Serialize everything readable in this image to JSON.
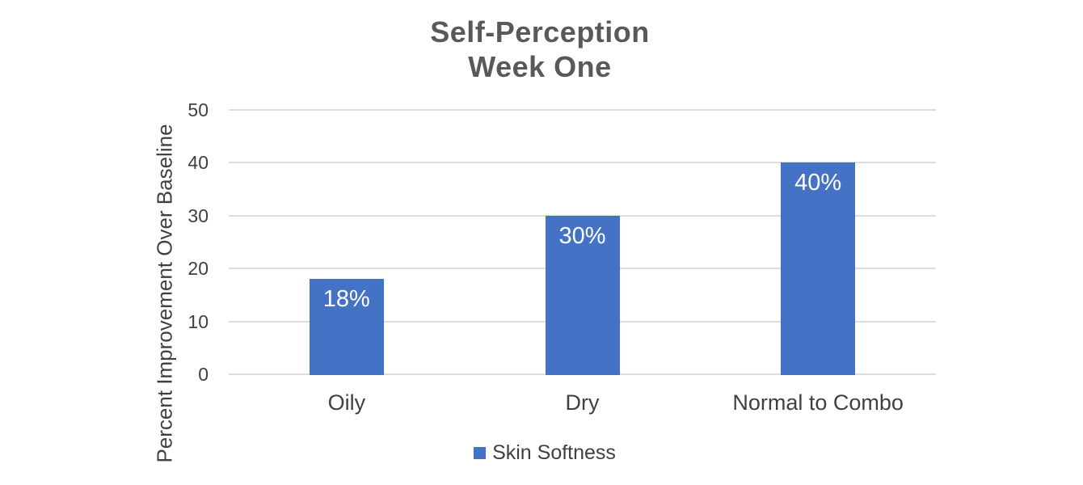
{
  "chart": {
    "title_line1": "Self-Perception",
    "title_line2": "Week One",
    "y_axis_title": "Percent Improvement Over Baseline",
    "legend_label": "Skin Softness"
  },
  "chart_data": {
    "type": "bar",
    "title": "Self-Perception Week One",
    "categories": [
      "Oily",
      "Dry",
      "Normal to Combo"
    ],
    "series": [
      {
        "name": "Skin Softness",
        "values": [
          18,
          30,
          40
        ]
      }
    ],
    "data_labels": [
      "18%",
      "30%",
      "40%"
    ],
    "xlabel": "",
    "ylabel": "Percent Improvement Over Baseline",
    "ylim": [
      0,
      50
    ],
    "yticks": [
      0,
      10,
      20,
      30,
      40,
      50
    ],
    "grid": true,
    "legend_position": "bottom",
    "colors": {
      "bar": "#4472C4",
      "gridline": "#dcdcdc",
      "title_text": "#595959",
      "axis_text": "#404040",
      "data_label_text": "#ffffff"
    }
  }
}
